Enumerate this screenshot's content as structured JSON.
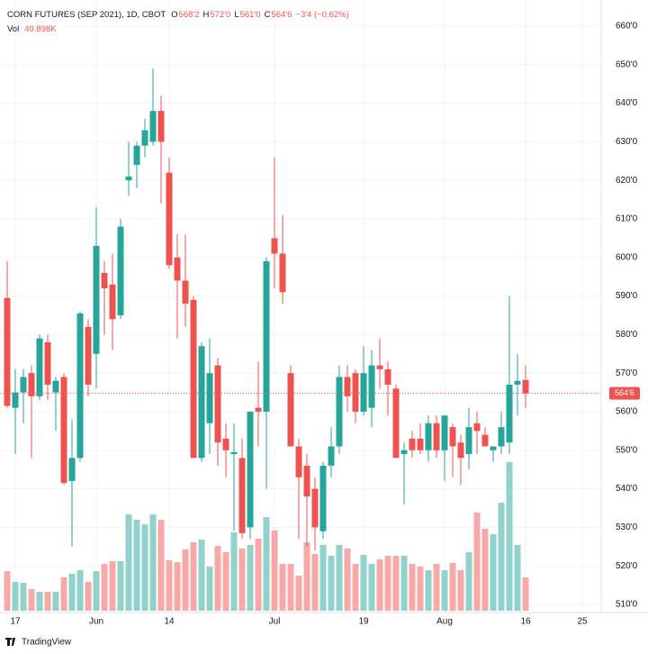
{
  "chart_data": {
    "type": "candlestick",
    "header": {
      "title": "CORN FUTURES (SEP 2021), 1D, CBOT",
      "ohlc": [
        {
          "key": "O",
          "value": "568'2"
        },
        {
          "key": "H",
          "value": "572'0"
        },
        {
          "key": "L",
          "value": "561'0"
        },
        {
          "key": "C",
          "value": "564'6"
        }
      ],
      "change": "−3'4 (−0.62%)",
      "volume_key": "Vol",
      "volume_value": "49.898K"
    },
    "price_label": "564'6",
    "brand": "TradingView",
    "up_color": "#26a69a",
    "down_color": "#ef5350",
    "up_volume_color": "#92d2cc",
    "down_volume_color": "#f7a9a7",
    "grid": true,
    "categories": [
      null,
      "17",
      null,
      null,
      null,
      null,
      null,
      null,
      null,
      null,
      null,
      "Jun",
      null,
      null,
      null,
      null,
      null,
      null,
      null,
      null,
      "14",
      null,
      null,
      null,
      null,
      null,
      null,
      null,
      null,
      null,
      null,
      null,
      null,
      "Jul",
      null,
      null,
      null,
      null,
      null,
      null,
      null,
      null,
      null,
      null,
      "19",
      null,
      null,
      null,
      null,
      null,
      null,
      null,
      null,
      null,
      "Aug",
      null,
      null,
      null,
      null,
      null,
      null,
      null,
      null,
      null,
      "16"
    ],
    "future_tick_labels": [
      "25"
    ],
    "open": [
      589.5,
      561,
      565,
      570,
      564,
      578,
      565,
      569,
      542,
      548,
      582,
      575,
      596,
      593,
      585,
      620,
      624,
      629,
      630,
      638,
      622,
      600,
      594,
      589,
      548,
      557,
      572,
      553,
      549,
      548,
      530,
      561,
      560,
      605,
      601,
      570,
      551,
      546,
      540,
      529,
      546,
      551,
      569,
      570,
      560,
      561,
      572,
      571,
      566,
      549,
      553,
      553,
      550,
      557,
      550,
      556,
      552,
      549,
      557,
      554,
      550,
      551,
      552,
      567,
      568.25
    ],
    "high": [
      599,
      571,
      571,
      572,
      580,
      580,
      569,
      570,
      558,
      586,
      584,
      613,
      599,
      601,
      610,
      630,
      630,
      636,
      649,
      642,
      626,
      606,
      606,
      590,
      578,
      579,
      574,
      557,
      557,
      553,
      560,
      573,
      600,
      626,
      611,
      572,
      553,
      549,
      543,
      547,
      556,
      572,
      572,
      571,
      577,
      576,
      579,
      573,
      567,
      552,
      555,
      557,
      559,
      559,
      559,
      557,
      554,
      561,
      560,
      556,
      551,
      560,
      590,
      575,
      572
    ],
    "low": [
      561,
      549,
      557,
      548,
      563,
      563,
      555,
      541,
      525,
      547,
      564,
      566,
      580,
      576,
      584,
      616,
      618,
      626,
      629,
      614,
      597,
      579,
      582,
      548,
      547,
      549,
      546,
      543,
      529,
      527,
      527,
      551,
      540,
      592,
      588,
      551,
      527,
      525,
      524,
      527,
      543,
      549,
      560,
      557,
      559,
      556,
      566,
      559,
      548,
      536,
      548,
      549,
      547,
      548,
      542,
      543,
      541,
      545,
      549,
      551,
      547,
      549,
      549,
      559,
      561
    ],
    "close": [
      561.5,
      565,
      569,
      564,
      579,
      567,
      568,
      541.5,
      548,
      585.5,
      567,
      603,
      592,
      584,
      608,
      621,
      629,
      633,
      638,
      630,
      598,
      594,
      588,
      548,
      577,
      570,
      552,
      550,
      549.5,
      528.5,
      560,
      560,
      599,
      601,
      591,
      551,
      543,
      538,
      530,
      546,
      551,
      569,
      564,
      560,
      570,
      572,
      571,
      567,
      548,
      550,
      550,
      550,
      557,
      550,
      559,
      551,
      548,
      556,
      555,
      551,
      551,
      556,
      567,
      568,
      564.75
    ],
    "volume": [
      59.4,
      43.2,
      41.9,
      32.4,
      28.4,
      28.4,
      28.4,
      50,
      55.4,
      60.8,
      43.2,
      59.4,
      70.2,
      74.3,
      74.3,
      144.5,
      136.4,
      129.6,
      144.5,
      136.4,
      75.6,
      72.9,
      91.8,
      102.6,
      106.7,
      66.2,
      97.2,
      87.8,
      117.5,
      93.2,
      98.6,
      108,
      140.4,
      120.2,
      70.2,
      70.2,
      52.7,
      102.6,
      85.1,
      98.6,
      82.4,
      98.6,
      93.2,
      70.2,
      83.7,
      70.2,
      77,
      82.4,
      82.4,
      82.4,
      70.2,
      66.2,
      60.8,
      70.2,
      60.8,
      71.6,
      60.8,
      87.8,
      147.2,
      122.9,
      114.8,
      162,
      222.8,
      98.6,
      49.898
    ],
    "ylim": [
      510,
      660
    ],
    "yticks": [
      {
        "value": 510,
        "label": "510'0"
      },
      {
        "value": 520,
        "label": "520'0"
      },
      {
        "value": 530,
        "label": "530'0"
      },
      {
        "value": 540,
        "label": "540'0"
      },
      {
        "value": 550,
        "label": "550'0"
      },
      {
        "value": 560,
        "label": "560'0"
      },
      {
        "value": 570,
        "label": "570'0"
      },
      {
        "value": 580,
        "label": "580'0"
      },
      {
        "value": 590,
        "label": "590'0"
      },
      {
        "value": 600,
        "label": "600'0"
      },
      {
        "value": 610,
        "label": "610'0"
      },
      {
        "value": 620,
        "label": "620'0"
      },
      {
        "value": 630,
        "label": "630'0"
      },
      {
        "value": 640,
        "label": "640'0"
      },
      {
        "value": 650,
        "label": "650'0"
      },
      {
        "value": 660,
        "label": "660'0"
      }
    ]
  }
}
